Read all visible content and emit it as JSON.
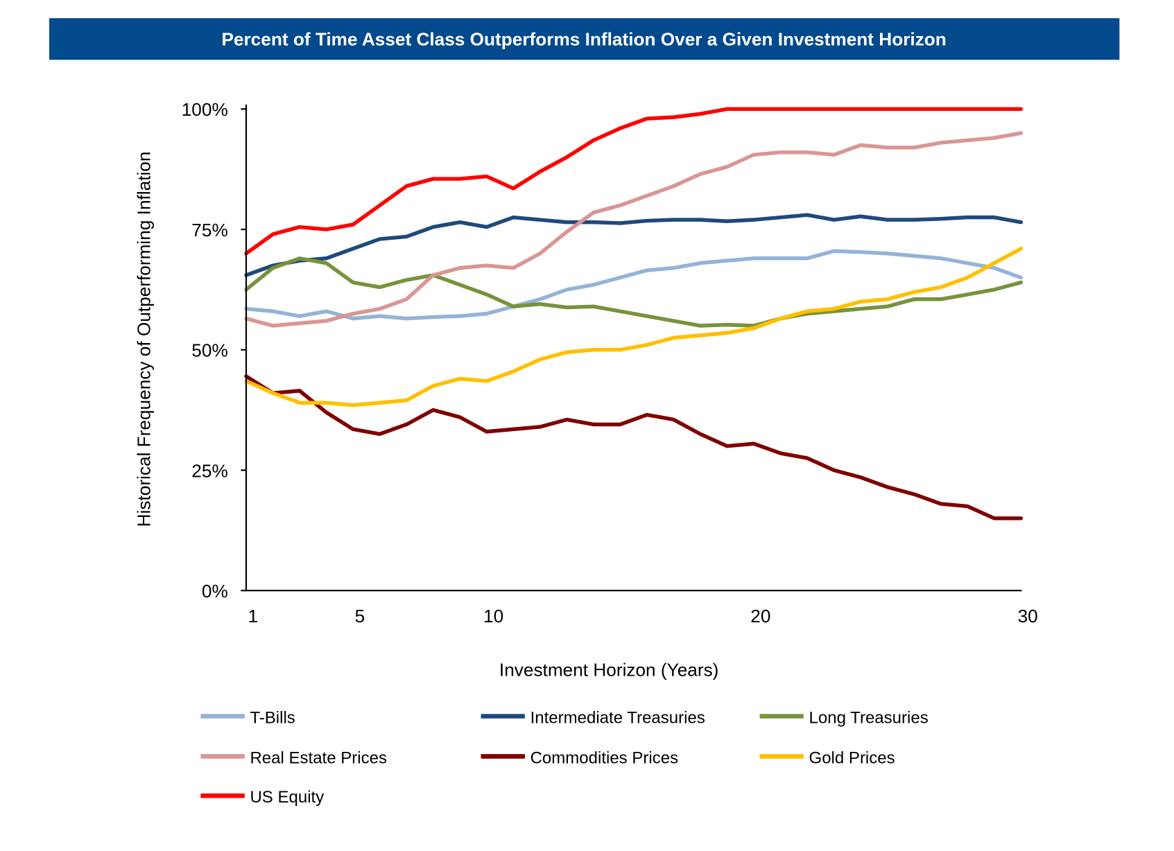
{
  "chart_data": {
    "type": "line",
    "title": "Percent of Time Asset Class Outperforms Inflation Over a Given Investment Horizon",
    "xlabel": "Investment Horizon (Years)",
    "ylabel": "Historical Frequency of Outperforming Inflation",
    "xlim": [
      1,
      30
    ],
    "ylim": [
      0,
      100
    ],
    "x_ticks": [
      1,
      5,
      10,
      20,
      30
    ],
    "y_ticks": [
      {
        "value": 0,
        "label": "0%"
      },
      {
        "value": 25,
        "label": "25%"
      },
      {
        "value": 50,
        "label": "50%"
      },
      {
        "value": 75,
        "label": "75%"
      },
      {
        "value": 100,
        "label": "100%"
      }
    ],
    "grid": false,
    "legend_position": "bottom",
    "title_bar_color": "#034a8c",
    "x": [
      1,
      2,
      3,
      4,
      5,
      6,
      7,
      8,
      9,
      10,
      11,
      12,
      13,
      14,
      15,
      16,
      17,
      18,
      19,
      20,
      21,
      22,
      23,
      24,
      25,
      26,
      27,
      28,
      29,
      30
    ],
    "series": [
      {
        "name": "T-Bills",
        "color": "#95b3d7",
        "values": [
          58.5,
          58,
          57,
          58,
          56.5,
          57,
          56.5,
          56.8,
          57,
          57.5,
          59,
          60.5,
          62.5,
          63.5,
          65,
          66.5,
          67,
          68,
          68.5,
          69,
          69,
          69,
          70.5,
          70.3,
          70,
          69.5,
          69,
          68,
          67,
          65
        ]
      },
      {
        "name": "Intermediate Treasuries",
        "color": "#1f497d",
        "values": [
          65.5,
          67.5,
          68.5,
          69,
          71,
          73,
          73.5,
          75.5,
          76.5,
          75.5,
          77.5,
          77,
          76.5,
          76.5,
          76.3,
          76.8,
          77,
          77,
          76.7,
          77,
          77.5,
          78,
          77,
          77.7,
          77,
          77,
          77.2,
          77.5,
          77.5,
          76.5
        ]
      },
      {
        "name": "Long Treasuries",
        "color": "#77933c",
        "values": [
          62.5,
          67,
          69,
          68,
          64,
          63,
          64.5,
          65.5,
          63.5,
          61.5,
          59,
          59.5,
          58.8,
          59,
          58,
          57,
          56,
          55,
          55.2,
          55,
          56.5,
          57.5,
          58,
          58.5,
          59,
          60.5,
          60.5,
          61.5,
          62.5,
          64
        ]
      },
      {
        "name": "Real Estate Prices",
        "color": "#d99694",
        "values": [
          56.5,
          55,
          55.5,
          56,
          57.5,
          58.5,
          60.5,
          65.5,
          67,
          67.5,
          67,
          70,
          74.5,
          78.5,
          80,
          82,
          84,
          86.5,
          88,
          90.5,
          91,
          91,
          90.5,
          92.5,
          92,
          92,
          93,
          93.5,
          94,
          95
        ]
      },
      {
        "name": "Commodities Prices",
        "color": "#7f0000",
        "values": [
          44.5,
          41,
          41.5,
          37,
          33.5,
          32.5,
          34.5,
          37.5,
          36,
          33,
          33.5,
          34,
          35.5,
          34.5,
          34.5,
          36.5,
          35.5,
          32.5,
          30,
          30.5,
          28.5,
          27.5,
          25,
          23.5,
          21.5,
          20,
          18,
          17.5,
          15,
          15
        ]
      },
      {
        "name": "Gold Prices",
        "color": "#ffc000",
        "values": [
          43.5,
          41,
          39,
          39,
          38.5,
          39,
          39.5,
          42.5,
          44,
          43.5,
          45.5,
          48,
          49.5,
          50,
          50,
          51,
          52.5,
          53,
          53.5,
          54.5,
          56.5,
          58,
          58.5,
          60,
          60.5,
          62,
          63,
          65,
          68,
          71
        ]
      },
      {
        "name": "US Equity",
        "color": "#ff0000",
        "values": [
          70,
          74,
          75.5,
          75,
          76,
          80,
          84,
          85.5,
          85.5,
          86,
          83.5,
          87,
          90,
          93.5,
          96,
          98,
          98.3,
          99,
          100,
          100,
          100,
          100,
          100,
          100,
          100,
          100,
          100,
          100,
          100,
          100
        ]
      }
    ]
  }
}
